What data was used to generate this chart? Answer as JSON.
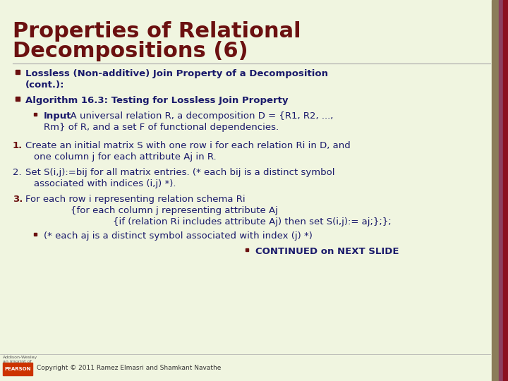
{
  "title_line1": "Properties of Relational",
  "title_line2": "Decompositions (6)",
  "title_color": "#6B1010",
  "title_fontsize": 22,
  "bg_color": "#F5F5DC",
  "right_bar_color": "#8B7D5A",
  "body_color": "#1A1A6B",
  "bullet_color": "#6B1010",
  "number_color": "#6B1010",
  "copyright_text": "Copyright © 2011 Ramez Elmasri and Shamkant Navathe",
  "pearson_color": "#CC3300",
  "body_fontsize": 9.5
}
